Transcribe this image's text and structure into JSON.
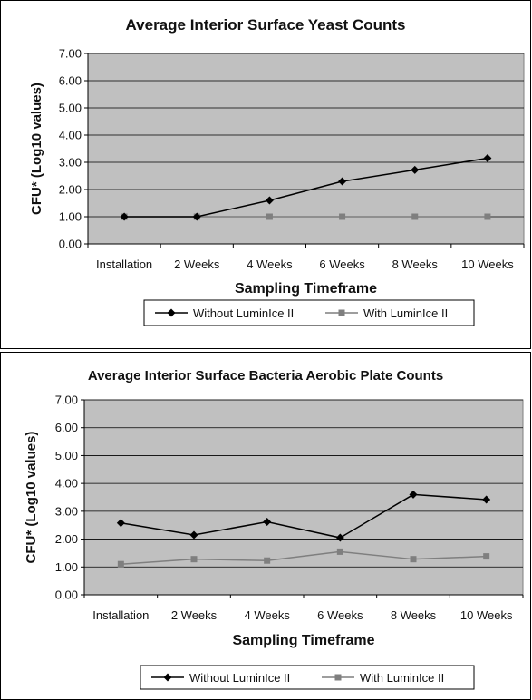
{
  "chart_data": [
    {
      "type": "line",
      "title": "Average Interior Surface Yeast Counts",
      "xlabel": "Sampling Timeframe",
      "ylabel": "CFU* (Log10 values)",
      "categories": [
        "Installation",
        "2 Weeks",
        "4 Weeks",
        "6 Weeks",
        "8 Weeks",
        "10 Weeks"
      ],
      "ylim": [
        0,
        7
      ],
      "yticks": [
        "0.00",
        "1.00",
        "2.00",
        "3.00",
        "4.00",
        "5.00",
        "6.00",
        "7.00"
      ],
      "grid": true,
      "legend": "bottom",
      "series": [
        {
          "name": "Without LuminIce II",
          "values": [
            1.0,
            1.0,
            1.6,
            2.3,
            2.72,
            3.15
          ],
          "color": "#000000",
          "marker": "diamond"
        },
        {
          "name": "With LuminIce II",
          "values": [
            1.0,
            1.0,
            1.0,
            1.0,
            1.0,
            1.0
          ],
          "color": "#7f7f7f",
          "marker": "square"
        }
      ]
    },
    {
      "type": "line",
      "title": "Average Interior Surface Bacteria Aerobic Plate Counts",
      "xlabel": "Sampling Timeframe",
      "ylabel": "CFU* (Log10 values)",
      "categories": [
        "Installation",
        "2 Weeks",
        "4 Weeks",
        "6 Weeks",
        "8 Weeks",
        "10 Weeks"
      ],
      "ylim": [
        0,
        7
      ],
      "yticks": [
        "0.00",
        "1.00",
        "2.00",
        "3.00",
        "4.00",
        "5.00",
        "6.00",
        "7.00"
      ],
      "grid": true,
      "legend": "bottom",
      "series": [
        {
          "name": "Without LuminIce II",
          "values": [
            2.58,
            2.15,
            2.62,
            2.05,
            3.6,
            3.42
          ],
          "color": "#000000",
          "marker": "diamond"
        },
        {
          "name": "With LuminIce II",
          "values": [
            1.1,
            1.28,
            1.23,
            1.55,
            1.28,
            1.38
          ],
          "color": "#7f7f7f",
          "marker": "square"
        }
      ]
    }
  ],
  "colors": {
    "plot_background": "#c0c0c0",
    "gridline": "#000000"
  }
}
